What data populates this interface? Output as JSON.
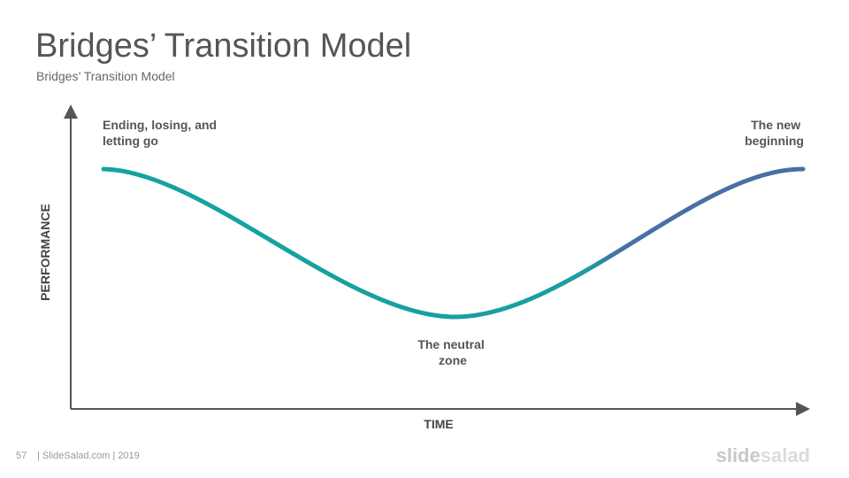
{
  "header": {
    "title": "Bridges’ Transition Model",
    "subtitle": "Bridges’ Transition Model"
  },
  "diagram": {
    "y_axis_label": "PERFORMANCE",
    "x_axis_label": "TIME",
    "annotations": [
      {
        "lines": [
          "Ending, losing, and",
          "letting go"
        ]
      },
      {
        "lines": [
          "The neutral",
          "zone"
        ]
      },
      {
        "lines": [
          "The new",
          "beginning"
        ]
      }
    ]
  },
  "footer": {
    "page": "57",
    "source": "| SlideSalad.com | 2019",
    "logo": [
      "slide",
      "salad"
    ]
  }
}
